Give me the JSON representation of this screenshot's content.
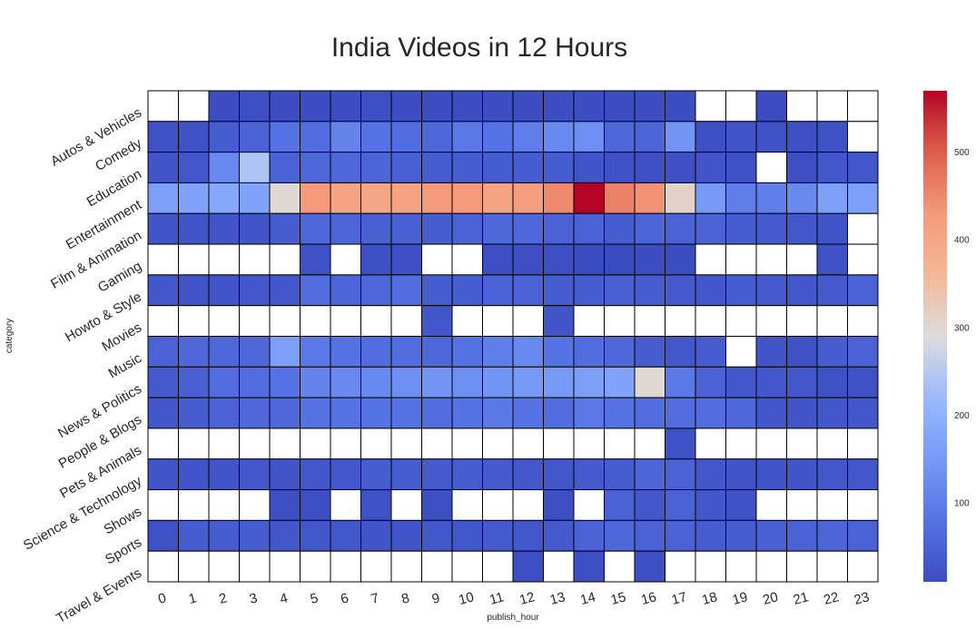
{
  "chart_data": {
    "type": "heatmap",
    "title": "India Videos in 12 Hours",
    "xlabel": "publish_hour",
    "ylabel": "category",
    "x": [
      "0",
      "1",
      "2",
      "3",
      "4",
      "5",
      "6",
      "7",
      "8",
      "9",
      "10",
      "11",
      "12",
      "13",
      "14",
      "15",
      "16",
      "17",
      "18",
      "19",
      "20",
      "21",
      "22",
      "23"
    ],
    "y": [
      "Autos & Vehicles",
      "Comedy",
      "Education",
      "Entertainment",
      "Film & Animation",
      "Gaming",
      "Howto & Style",
      "Movies",
      "Music",
      "News & Politics",
      "People & Blogs",
      "Pets & Animals",
      "Science & Technology",
      "Shows",
      "Sports",
      "Travel & Events"
    ],
    "values": [
      [
        null,
        null,
        12,
        15,
        12,
        14,
        13,
        15,
        14,
        12,
        14,
        13,
        13,
        14,
        13,
        12,
        13,
        13,
        null,
        null,
        10,
        null,
        null,
        null
      ],
      [
        20,
        20,
        40,
        50,
        80,
        70,
        110,
        80,
        70,
        60,
        90,
        80,
        100,
        120,
        130,
        60,
        55,
        140,
        18,
        25,
        20,
        18,
        20,
        null
      ],
      [
        25,
        30,
        120,
        240,
        50,
        60,
        60,
        55,
        45,
        40,
        40,
        40,
        40,
        40,
        25,
        20,
        18,
        18,
        25,
        20,
        null,
        15,
        30,
        30
      ],
      [
        160,
        170,
        180,
        170,
        300,
        430,
        410,
        400,
        410,
        430,
        430,
        410,
        420,
        450,
        570,
        460,
        440,
        310,
        150,
        100,
        100,
        120,
        160,
        160
      ],
      [
        25,
        25,
        25,
        25,
        40,
        60,
        55,
        45,
        45,
        40,
        50,
        60,
        60,
        50,
        50,
        40,
        55,
        50,
        50,
        40,
        35,
        30,
        25,
        null
      ],
      [
        null,
        null,
        null,
        null,
        null,
        20,
        null,
        18,
        18,
        null,
        null,
        15,
        15,
        15,
        10,
        10,
        12,
        12,
        null,
        null,
        null,
        null,
        20,
        null
      ],
      [
        30,
        25,
        25,
        30,
        30,
        70,
        55,
        60,
        70,
        40,
        40,
        50,
        50,
        40,
        40,
        45,
        40,
        35,
        30,
        40,
        35,
        30,
        35,
        50
      ],
      [
        null,
        null,
        null,
        null,
        null,
        null,
        null,
        null,
        null,
        30,
        null,
        null,
        null,
        25,
        null,
        null,
        null,
        null,
        null,
        null,
        null,
        null,
        null,
        null
      ],
      [
        50,
        60,
        60,
        60,
        160,
        90,
        80,
        70,
        70,
        60,
        80,
        100,
        120,
        80,
        70,
        60,
        40,
        30,
        40,
        null,
        25,
        20,
        40,
        50
      ],
      [
        35,
        45,
        70,
        70,
        80,
        110,
        120,
        120,
        130,
        140,
        130,
        140,
        150,
        150,
        160,
        170,
        300,
        90,
        50,
        30,
        30,
        30,
        20,
        20
      ],
      [
        30,
        40,
        50,
        60,
        60,
        80,
        80,
        80,
        80,
        70,
        80,
        90,
        80,
        70,
        90,
        80,
        70,
        70,
        70,
        60,
        30,
        25,
        30,
        30
      ],
      [
        null,
        null,
        null,
        null,
        null,
        null,
        null,
        null,
        null,
        null,
        null,
        null,
        null,
        null,
        null,
        null,
        null,
        20,
        null,
        null,
        null,
        null,
        null,
        null
      ],
      [
        25,
        25,
        25,
        30,
        25,
        30,
        30,
        40,
        40,
        35,
        40,
        35,
        30,
        30,
        35,
        40,
        55,
        50,
        30,
        25,
        25,
        25,
        30,
        30
      ],
      [
        null,
        null,
        null,
        null,
        15,
        15,
        null,
        20,
        null,
        15,
        null,
        null,
        null,
        15,
        null,
        50,
        30,
        50,
        30,
        20,
        null,
        null,
        null,
        null
      ],
      [
        20,
        40,
        40,
        40,
        30,
        30,
        30,
        25,
        25,
        30,
        30,
        35,
        30,
        35,
        50,
        60,
        50,
        50,
        40,
        40,
        45,
        50,
        55,
        50
      ],
      [
        null,
        null,
        null,
        null,
        null,
        null,
        null,
        null,
        null,
        null,
        null,
        null,
        15,
        null,
        15,
        null,
        15,
        null,
        null,
        null,
        null,
        null,
        null,
        null
      ]
    ],
    "colorbar": {
      "min": 10,
      "max": 570,
      "ticks": [
        100,
        200,
        300,
        400,
        500
      ],
      "colormap": "coolwarm"
    },
    "missing_color": "#ffffff",
    "cell_border_color": "#000000"
  }
}
